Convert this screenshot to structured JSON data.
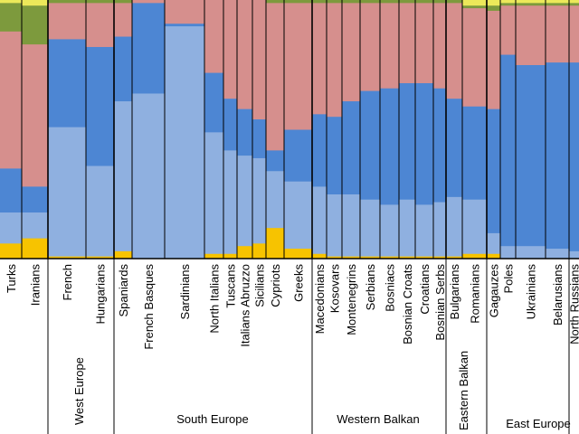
{
  "chart_data": {
    "type": "bar",
    "stacked": true,
    "normalized": true,
    "ylim": [
      0,
      1
    ],
    "colors": {
      "yellow": "#f7c300",
      "light_blue": "#8fb0e0",
      "blue": "#4d86d3",
      "pink": "#d68f8d",
      "olive": "#7d9a3d",
      "pale_yellow": "#ece95a"
    },
    "component_order": [
      "yellow",
      "light_blue",
      "blue",
      "pink",
      "olive",
      "pale_yellow"
    ],
    "populations": [
      {
        "label": "Turks",
        "values": [
          0.06,
          0.12,
          0.17,
          0.53,
          0.11,
          0.01
        ]
      },
      {
        "label": "Iranians",
        "values": [
          0.08,
          0.1,
          0.1,
          0.55,
          0.15,
          0.02
        ]
      },
      {
        "label": "French",
        "values": [
          0.01,
          0.5,
          0.34,
          0.14,
          0.01,
          0.0
        ]
      },
      {
        "label": "Hungarians",
        "values": [
          0.01,
          0.35,
          0.46,
          0.17,
          0.01,
          0.0
        ]
      },
      {
        "label": "Spaniards",
        "values": [
          0.03,
          0.58,
          0.25,
          0.13,
          0.01,
          0.0
        ]
      },
      {
        "label": "French Basques",
        "values": [
          0.0,
          0.64,
          0.35,
          0.01,
          0.0,
          0.0
        ]
      },
      {
        "label": "Sardinians",
        "values": [
          0.0,
          0.9,
          0.01,
          0.09,
          0.0,
          0.0
        ]
      },
      {
        "label": "North Italians",
        "values": [
          0.02,
          0.47,
          0.23,
          0.28,
          0.0,
          0.0
        ]
      },
      {
        "label": "Tuscans",
        "values": [
          0.02,
          0.4,
          0.2,
          0.38,
          0.0,
          0.0
        ]
      },
      {
        "label": "Italians Abruzzo",
        "values": [
          0.05,
          0.35,
          0.18,
          0.42,
          0.0,
          0.0
        ]
      },
      {
        "label": "Sicilians",
        "values": [
          0.06,
          0.33,
          0.15,
          0.46,
          0.0,
          0.0
        ]
      },
      {
        "label": "Cypriots",
        "values": [
          0.12,
          0.22,
          0.08,
          0.57,
          0.01,
          0.0
        ]
      },
      {
        "label": "Greeks",
        "values": [
          0.04,
          0.26,
          0.2,
          0.49,
          0.01,
          0.0
        ]
      },
      {
        "label": "Macedonians",
        "values": [
          0.02,
          0.26,
          0.28,
          0.43,
          0.01,
          0.0
        ]
      },
      {
        "label": "Kosovars",
        "values": [
          0.01,
          0.24,
          0.3,
          0.44,
          0.01,
          0.0
        ]
      },
      {
        "label": "Montenegrins",
        "values": [
          0.01,
          0.24,
          0.36,
          0.38,
          0.01,
          0.0
        ]
      },
      {
        "label": "Serbians",
        "values": [
          0.01,
          0.22,
          0.42,
          0.34,
          0.01,
          0.0
        ]
      },
      {
        "label": "Bosniacs",
        "values": [
          0.01,
          0.2,
          0.45,
          0.33,
          0.01,
          0.0
        ]
      },
      {
        "label": "Bosnian Croats",
        "values": [
          0.01,
          0.22,
          0.45,
          0.31,
          0.01,
          0.0
        ]
      },
      {
        "label": "Croatians",
        "values": [
          0.01,
          0.2,
          0.47,
          0.31,
          0.01,
          0.0
        ]
      },
      {
        "label": "Bosnian Serbs",
        "values": [
          0.01,
          0.21,
          0.44,
          0.33,
          0.01,
          0.0
        ]
      },
      {
        "label": "Bulgarians",
        "values": [
          0.01,
          0.23,
          0.38,
          0.37,
          0.01,
          0.0
        ]
      },
      {
        "label": "Romanians",
        "values": [
          0.02,
          0.21,
          0.36,
          0.38,
          0.01,
          0.02
        ]
      },
      {
        "label": "Gagauzes",
        "values": [
          0.02,
          0.08,
          0.48,
          0.38,
          0.02,
          0.02
        ]
      },
      {
        "label": "Poles",
        "values": [
          0.0,
          0.05,
          0.74,
          0.19,
          0.01,
          0.01
        ]
      },
      {
        "label": "Ukrainians",
        "values": [
          0.0,
          0.05,
          0.7,
          0.23,
          0.01,
          0.01
        ]
      },
      {
        "label": "Belarusians",
        "values": [
          0.0,
          0.04,
          0.72,
          0.22,
          0.01,
          0.01
        ]
      },
      {
        "label": "North Russians",
        "values": [
          0.0,
          0.03,
          0.73,
          0.22,
          0.01,
          0.01
        ]
      }
    ],
    "groups": [
      {
        "label": "",
        "from": 0,
        "to": 1
      },
      {
        "label": "West Europe",
        "from": 2,
        "to": 3
      },
      {
        "label": "South Europe",
        "from": 4,
        "to": 12
      },
      {
        "label": "Western Balkan",
        "from": 13,
        "to": 20
      },
      {
        "label": "Eastern Balkan",
        "from": 21,
        "to": 22
      },
      {
        "label": "East Europe",
        "from": 23,
        "to": 27
      }
    ]
  }
}
